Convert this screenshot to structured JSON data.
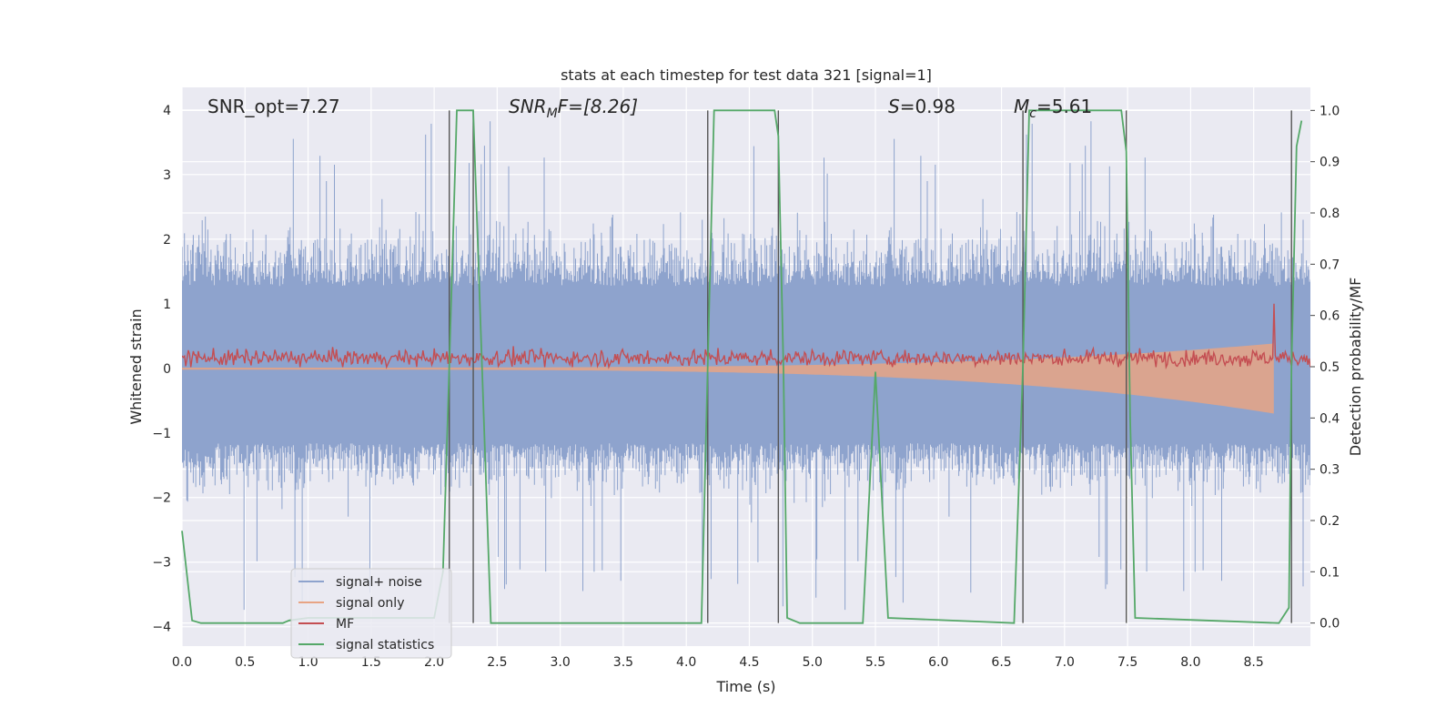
{
  "chart_data": {
    "type": "line",
    "title": "stats at each timestep for test data 321 [signal=1]",
    "xlabel": "Time (s)",
    "ylabel": "Whitened strain",
    "y2label": "Detection probability/MF",
    "xlim": [
      0.0,
      8.95
    ],
    "ylim": [
      -4.3,
      4.35
    ],
    "y2lim": [
      -0.045,
      1.045
    ],
    "grid": true,
    "legend_position": "lower-left",
    "x_ticks": [
      "0.0",
      "0.5",
      "1.0",
      "1.5",
      "2.0",
      "2.5",
      "3.0",
      "3.5",
      "4.0",
      "4.5",
      "5.0",
      "5.5",
      "6.0",
      "6.5",
      "7.0",
      "7.5",
      "8.0",
      "8.5"
    ],
    "y_ticks": [
      "4",
      "3",
      "2",
      "1",
      "0",
      "−1",
      "−2",
      "−3",
      "−4"
    ],
    "y2_ticks": [
      "1.0",
      "0.9",
      "0.8",
      "0.7",
      "0.6",
      "0.5",
      "0.4",
      "0.3",
      "0.2",
      "0.1",
      "0.0"
    ],
    "annotations": {
      "snr_opt": "SNR_opt=7.27",
      "snr_mf_main": "SNR",
      "snr_mf_sub": "M",
      "snr_mf_rest": "F=[8.26]",
      "s_main": "S",
      "s_rest": "=0.98",
      "mc_main": "M",
      "mc_sub": "c",
      "mc_rest": "=5.61"
    },
    "vertical_markers": [
      2.12,
      2.31,
      4.17,
      4.73,
      6.67,
      7.49,
      8.8
    ],
    "series": [
      {
        "name": "signal+ noise",
        "color": "#8ea3cd",
        "description_envelope": {
          "upper_typical": 1.7,
          "lower_typical": -1.45,
          "peak_upper": 3.85,
          "peak_lower": -3.75
        }
      },
      {
        "name": "signal only",
        "color": "#e8a484",
        "chirp": {
          "start_amp": 0.02,
          "end_amp": 0.7,
          "end_time": 8.66
        }
      },
      {
        "name": "MF",
        "color": "#c44e52",
        "typical_range": [
          0.02,
          0.38
        ],
        "peak": {
          "x": 8.66,
          "y": 1.0
        }
      },
      {
        "name": "signal statistics",
        "color": "#55a868",
        "x": [
          0.0,
          0.08,
          0.15,
          0.8,
          0.85,
          1.0,
          2.0,
          2.07,
          2.12,
          2.18,
          2.22,
          2.31,
          2.38,
          2.45,
          4.0,
          4.12,
          4.17,
          4.22,
          4.25,
          4.7,
          4.73,
          4.77,
          4.8,
          4.9,
          5.4,
          5.5,
          5.6,
          6.6,
          6.67,
          6.72,
          6.75,
          7.45,
          7.49,
          7.52,
          7.56,
          8.7,
          8.78,
          8.8,
          8.84,
          8.88
        ],
        "y": [
          0.18,
          0.005,
          0.0,
          0.0,
          0.005,
          0.01,
          0.01,
          0.1,
          0.5,
          1.0,
          1.0,
          1.0,
          0.5,
          0.0,
          0.0,
          0.0,
          0.5,
          1.0,
          1.0,
          1.0,
          0.95,
          0.5,
          0.01,
          0.0,
          0.0,
          0.49,
          0.01,
          0.0,
          0.5,
          1.0,
          1.0,
          1.0,
          0.92,
          0.4,
          0.01,
          0.0,
          0.03,
          0.5,
          0.93,
          0.98
        ]
      }
    ]
  }
}
